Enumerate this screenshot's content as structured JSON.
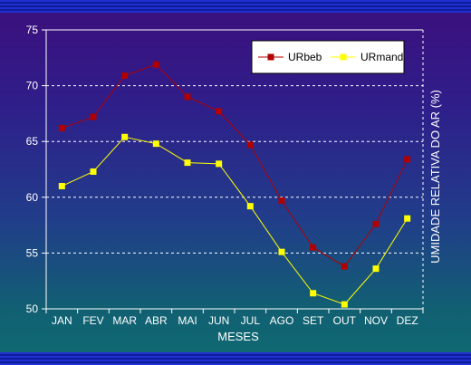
{
  "chart_data": {
    "type": "line",
    "categories": [
      "JAN",
      "FEV",
      "MAR",
      "ABR",
      "MAI",
      "JUN",
      "JUL",
      "AGO",
      "SET",
      "OUT",
      "NOV",
      "DEZ"
    ],
    "series": [
      {
        "name": "URbeb",
        "color": "#b00000",
        "values": [
          66.2,
          67.2,
          70.9,
          71.9,
          69.0,
          67.7,
          64.7,
          59.7,
          55.5,
          53.8,
          57.6,
          63.4
        ]
      },
      {
        "name": "URmand",
        "color": "#ffff00",
        "values": [
          61.0,
          62.3,
          65.4,
          64.8,
          63.1,
          63.0,
          59.2,
          55.1,
          51.4,
          50.4,
          53.6,
          58.1
        ]
      }
    ],
    "xlabel": "MESES",
    "ylabel": "UMIDADE RELATIVA DO AR (%)",
    "ylim": [
      50,
      75
    ],
    "yticks": [
      50,
      55,
      60,
      65,
      70,
      75
    ],
    "grid": true,
    "legend_position": "top-right"
  }
}
